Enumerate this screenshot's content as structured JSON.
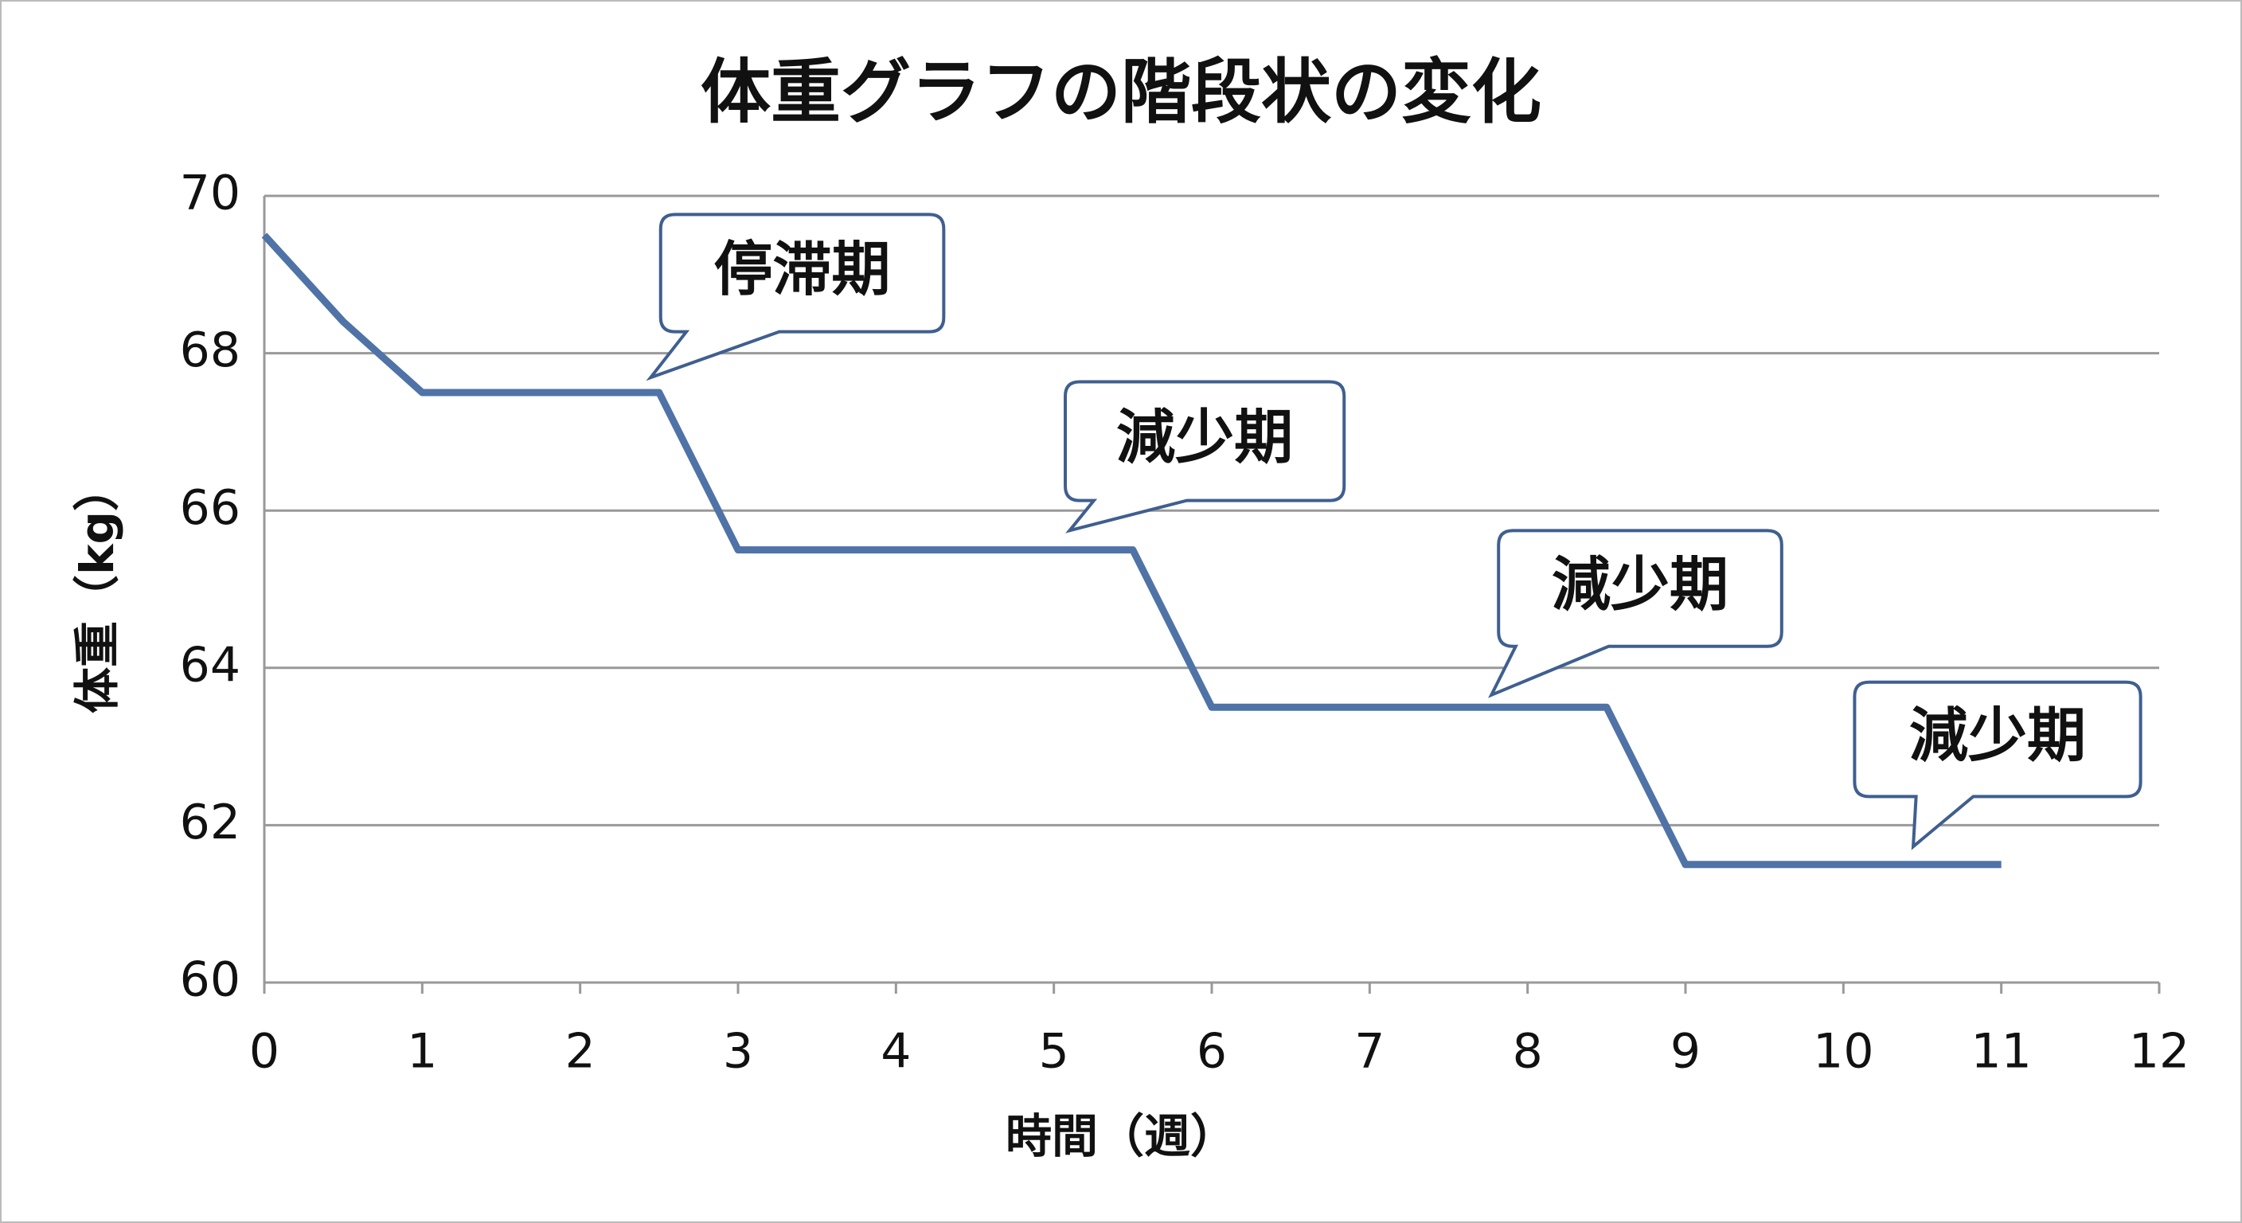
{
  "chart_data": {
    "type": "line",
    "title": "体重グラフの階段状の変化",
    "x_label": "時間（週）",
    "y_label": "体重（kg）",
    "x": [
      0,
      0.5,
      1,
      2.5,
      3,
      5.5,
      6,
      8.5,
      9,
      11
    ],
    "values": [
      69.5,
      68.4,
      67.5,
      67.5,
      65.5,
      65.5,
      63.5,
      63.5,
      61.5,
      61.5
    ],
    "color": "#4f73a7",
    "xlim": [
      0,
      12
    ],
    "xticks": [
      0,
      1,
      2,
      3,
      4,
      5,
      6,
      7,
      8,
      9,
      10,
      11,
      12
    ],
    "ylim": [
      60,
      70
    ],
    "yticks": [
      60,
      62,
      64,
      66,
      68,
      70
    ],
    "grid": true,
    "annotations": [
      "停滞期",
      "減少期",
      "減少期",
      "減少期"
    ]
  }
}
